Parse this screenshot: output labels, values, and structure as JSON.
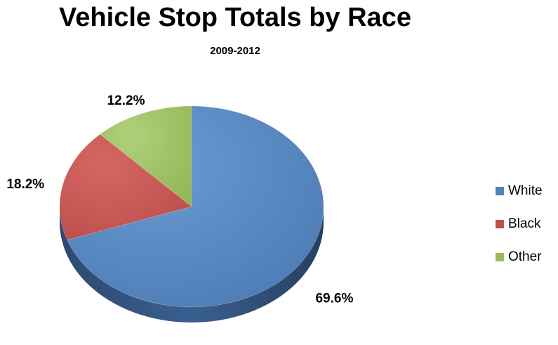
{
  "chart_data": {
    "type": "pie",
    "title": "Vehicle Stop Totals by Race",
    "subtitle": "2009-2012",
    "categories": [
      "White",
      "Black",
      "Other"
    ],
    "values": [
      69.6,
      18.2,
      12.2
    ],
    "data_labels": [
      "69.6%",
      "18.2%",
      "12.2%"
    ],
    "colors": [
      "#4F81BD",
      "#C0504D",
      "#9BBB59"
    ],
    "legend_position": "right",
    "style": "3d-pie"
  }
}
